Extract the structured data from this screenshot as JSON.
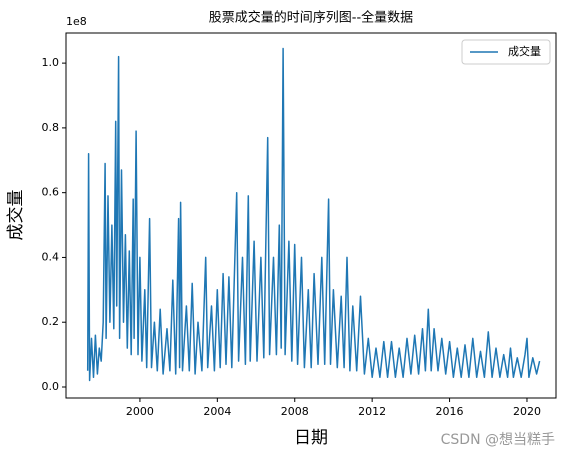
{
  "chart_data": {
    "type": "line",
    "title": "股票成交量的时间序列图--全量数据",
    "x_label": "日期",
    "y_label": "成交量",
    "y_offset_label": "1e8",
    "legend": "upper right",
    "watermark": "CSDN @想当糕手",
    "xlim": [
      1996.18,
      2021.5
    ],
    "xticks": [
      2000,
      2004,
      2008,
      2012,
      2016,
      2020
    ],
    "ylim": [
      -0.034,
      1.093
    ],
    "yticks": [
      {
        "value": 0,
        "label": "0.0"
      },
      0.2,
      0.4,
      0.6,
      0.8,
      {
        "value": 1,
        "label": "1.0"
      }
    ],
    "x": [
      1997.3,
      1997.35,
      1997.4,
      1997.5,
      1997.6,
      1997.7,
      1997.8,
      1997.9,
      1998.0,
      1998.1,
      1998.2,
      1998.25,
      1998.35,
      1998.45,
      1998.55,
      1998.65,
      1998.75,
      1998.8,
      1998.9,
      1998.95,
      1999.05,
      1999.15,
      1999.25,
      1999.35,
      1999.45,
      1999.55,
      1999.65,
      1999.7,
      1999.8,
      1999.9,
      2000.0,
      2000.1,
      2000.25,
      2000.35,
      2000.5,
      2000.6,
      2000.75,
      2000.9,
      2001.05,
      2001.2,
      2001.4,
      2001.55,
      2001.7,
      2001.85,
      2002.0,
      2002.05,
      2002.1,
      2002.2,
      2002.4,
      2002.55,
      2002.7,
      2002.85,
      2003.0,
      2003.2,
      2003.4,
      2003.5,
      2003.7,
      2003.85,
      2004.0,
      2004.15,
      2004.3,
      2004.45,
      2004.6,
      2004.75,
      2005.0,
      2005.1,
      2005.3,
      2005.45,
      2005.6,
      2005.7,
      2005.9,
      2006.05,
      2006.25,
      2006.4,
      2006.6,
      2006.7,
      2006.9,
      2007.05,
      2007.2,
      2007.3,
      2007.4,
      2007.5,
      2007.7,
      2007.85,
      2008.0,
      2008.15,
      2008.35,
      2008.5,
      2008.7,
      2008.85,
      2009.0,
      2009.2,
      2009.4,
      2009.55,
      2009.75,
      2009.85,
      2010.0,
      2010.2,
      2010.4,
      2010.55,
      2010.7,
      2010.85,
      2011.0,
      2011.2,
      2011.4,
      2011.6,
      2011.8,
      2012.0,
      2012.2,
      2012.4,
      2012.6,
      2012.8,
      2013.0,
      2013.2,
      2013.4,
      2013.6,
      2013.8,
      2014.0,
      2014.2,
      2014.4,
      2014.6,
      2014.75,
      2014.9,
      2015.05,
      2015.2,
      2015.4,
      2015.6,
      2015.8,
      2016.0,
      2016.2,
      2016.4,
      2016.6,
      2016.8,
      2017.0,
      2017.2,
      2017.4,
      2017.6,
      2017.8,
      2018.0,
      2018.2,
      2018.4,
      2018.6,
      2018.8,
      2019.0,
      2019.15,
      2019.3,
      2019.5,
      2019.7,
      2019.9,
      2020.0,
      2020.1,
      2020.3,
      2020.5,
      2020.65
    ],
    "series": [
      {
        "name": "成交量",
        "color": "#1f77b4",
        "values": [
          0.05,
          0.72,
          0.02,
          0.15,
          0.03,
          0.16,
          0.04,
          0.12,
          0.08,
          0.2,
          0.69,
          0.15,
          0.59,
          0.2,
          0.5,
          0.18,
          0.82,
          0.25,
          1.02,
          0.15,
          0.67,
          0.2,
          0.47,
          0.12,
          0.42,
          0.1,
          0.58,
          0.15,
          0.79,
          0.1,
          0.4,
          0.08,
          0.3,
          0.06,
          0.52,
          0.06,
          0.2,
          0.05,
          0.24,
          0.04,
          0.18,
          0.05,
          0.33,
          0.04,
          0.52,
          0.06,
          0.57,
          0.05,
          0.25,
          0.05,
          0.32,
          0.04,
          0.2,
          0.05,
          0.4,
          0.06,
          0.25,
          0.05,
          0.3,
          0.06,
          0.35,
          0.07,
          0.34,
          0.06,
          0.6,
          0.08,
          0.4,
          0.07,
          0.59,
          0.08,
          0.45,
          0.08,
          0.4,
          0.09,
          0.77,
          0.1,
          0.4,
          0.1,
          0.5,
          0.12,
          1.045,
          0.1,
          0.45,
          0.08,
          0.44,
          0.07,
          0.4,
          0.06,
          0.3,
          0.06,
          0.35,
          0.07,
          0.4,
          0.07,
          0.58,
          0.07,
          0.3,
          0.06,
          0.28,
          0.06,
          0.4,
          0.05,
          0.25,
          0.05,
          0.28,
          0.04,
          0.15,
          0.03,
          0.12,
          0.03,
          0.14,
          0.03,
          0.14,
          0.03,
          0.12,
          0.03,
          0.15,
          0.04,
          0.16,
          0.04,
          0.18,
          0.05,
          0.24,
          0.05,
          0.18,
          0.05,
          0.15,
          0.04,
          0.14,
          0.03,
          0.12,
          0.03,
          0.13,
          0.03,
          0.15,
          0.03,
          0.11,
          0.03,
          0.17,
          0.03,
          0.12,
          0.03,
          0.1,
          0.03,
          0.12,
          0.03,
          0.09,
          0.03,
          0.1,
          0.15,
          0.03,
          0.09,
          0.04,
          0.08
        ]
      }
    ]
  }
}
